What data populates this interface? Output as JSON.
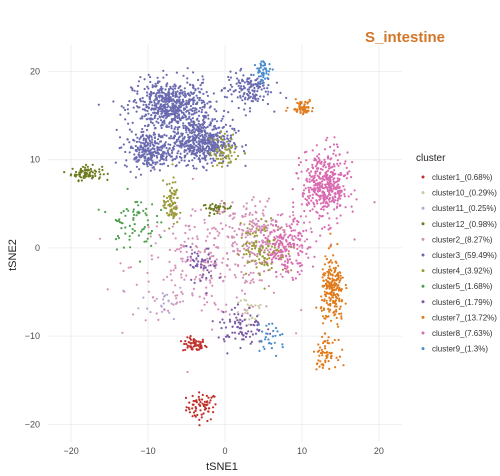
{
  "chart_data": {
    "type": "scatter",
    "title": "S_intestine",
    "title_color": "#d2762a",
    "xlabel": "tSNE1",
    "ylabel": "tSNE2",
    "xlim": [
      -23,
      23
    ],
    "ylim": [
      -22,
      23
    ],
    "x_ticks": [
      -20,
      -10,
      0,
      10,
      20
    ],
    "y_ticks": [
      -20,
      -10,
      0,
      10,
      20
    ],
    "grid": true,
    "legend": {
      "title": "cluster",
      "position": "right"
    },
    "series": [
      {
        "name": "cluster1_(0.68%)",
        "color": "#c0302a",
        "clusters": [
          [
            -3,
            -18,
            2.0,
            1.6,
            70
          ],
          [
            -4,
            -11,
            1.5,
            0.8,
            60
          ]
        ]
      },
      {
        "name": "cluster10_(0.29%)",
        "color": "#c8c8a0",
        "clusters": [
          [
            3,
            -7,
            2.5,
            2.0,
            25
          ]
        ]
      },
      {
        "name": "cluster11_(0.25%)",
        "color": "#b7a7d0",
        "clusters": [
          [
            -8,
            -6,
            3.0,
            2.0,
            25
          ]
        ]
      },
      {
        "name": "cluster12_(0.98%)",
        "color": "#6e7b1e",
        "clusters": [
          [
            -18,
            8.5,
            2.0,
            0.8,
            80
          ],
          [
            -1,
            4.5,
            2.0,
            0.5,
            40
          ]
        ]
      },
      {
        "name": "cluster2_(8.27%)",
        "color": "#d68fb8",
        "clusters": [
          [
            -2,
            -2,
            10,
            6,
            260
          ],
          [
            4,
            2,
            6,
            4,
            160
          ]
        ]
      },
      {
        "name": "cluster3_(59.49%)",
        "color": "#6a6ab0",
        "clusters": [
          [
            -7,
            16,
            5,
            3,
            650
          ],
          [
            -3,
            12,
            4,
            2.5,
            500
          ],
          [
            -10,
            11,
            3,
            2,
            250
          ],
          [
            3,
            18,
            3,
            2,
            150
          ]
        ]
      },
      {
        "name": "cluster4_(3.92%)",
        "color": "#9a9a3a",
        "clusters": [
          [
            -7,
            5,
            1.0,
            2.5,
            80
          ],
          [
            5,
            0,
            3,
            3,
            120
          ],
          [
            0,
            11,
            2,
            2,
            60
          ]
        ]
      },
      {
        "name": "cluster5_(1.68%)",
        "color": "#4f9f4f",
        "clusters": [
          [
            -12,
            3,
            3,
            3,
            70
          ]
        ]
      },
      {
        "name": "cluster6_(1.79%)",
        "color": "#7b5aa6",
        "clusters": [
          [
            2,
            -9,
            3,
            2.5,
            80
          ],
          [
            -3,
            -2,
            2,
            2,
            50
          ]
        ]
      },
      {
        "name": "cluster7_(13.72%)",
        "color": "#e07b1c",
        "clusters": [
          [
            14,
            -5,
            1.5,
            4,
            220
          ],
          [
            10,
            16,
            1.5,
            0.8,
            60
          ],
          [
            13,
            -12,
            1.5,
            1.5,
            60
          ]
        ]
      },
      {
        "name": "cluster8_(7.63%)",
        "color": "#d96bb0",
        "clusters": [
          [
            13,
            7,
            3,
            4,
            420
          ],
          [
            8,
            0,
            3,
            3,
            180
          ]
        ]
      },
      {
        "name": "cluster9_(1.3%)",
        "color": "#4a8ccc",
        "clusters": [
          [
            5,
            20,
            1.0,
            1.2,
            50
          ],
          [
            6,
            -10,
            2,
            2,
            30
          ]
        ]
      }
    ]
  }
}
